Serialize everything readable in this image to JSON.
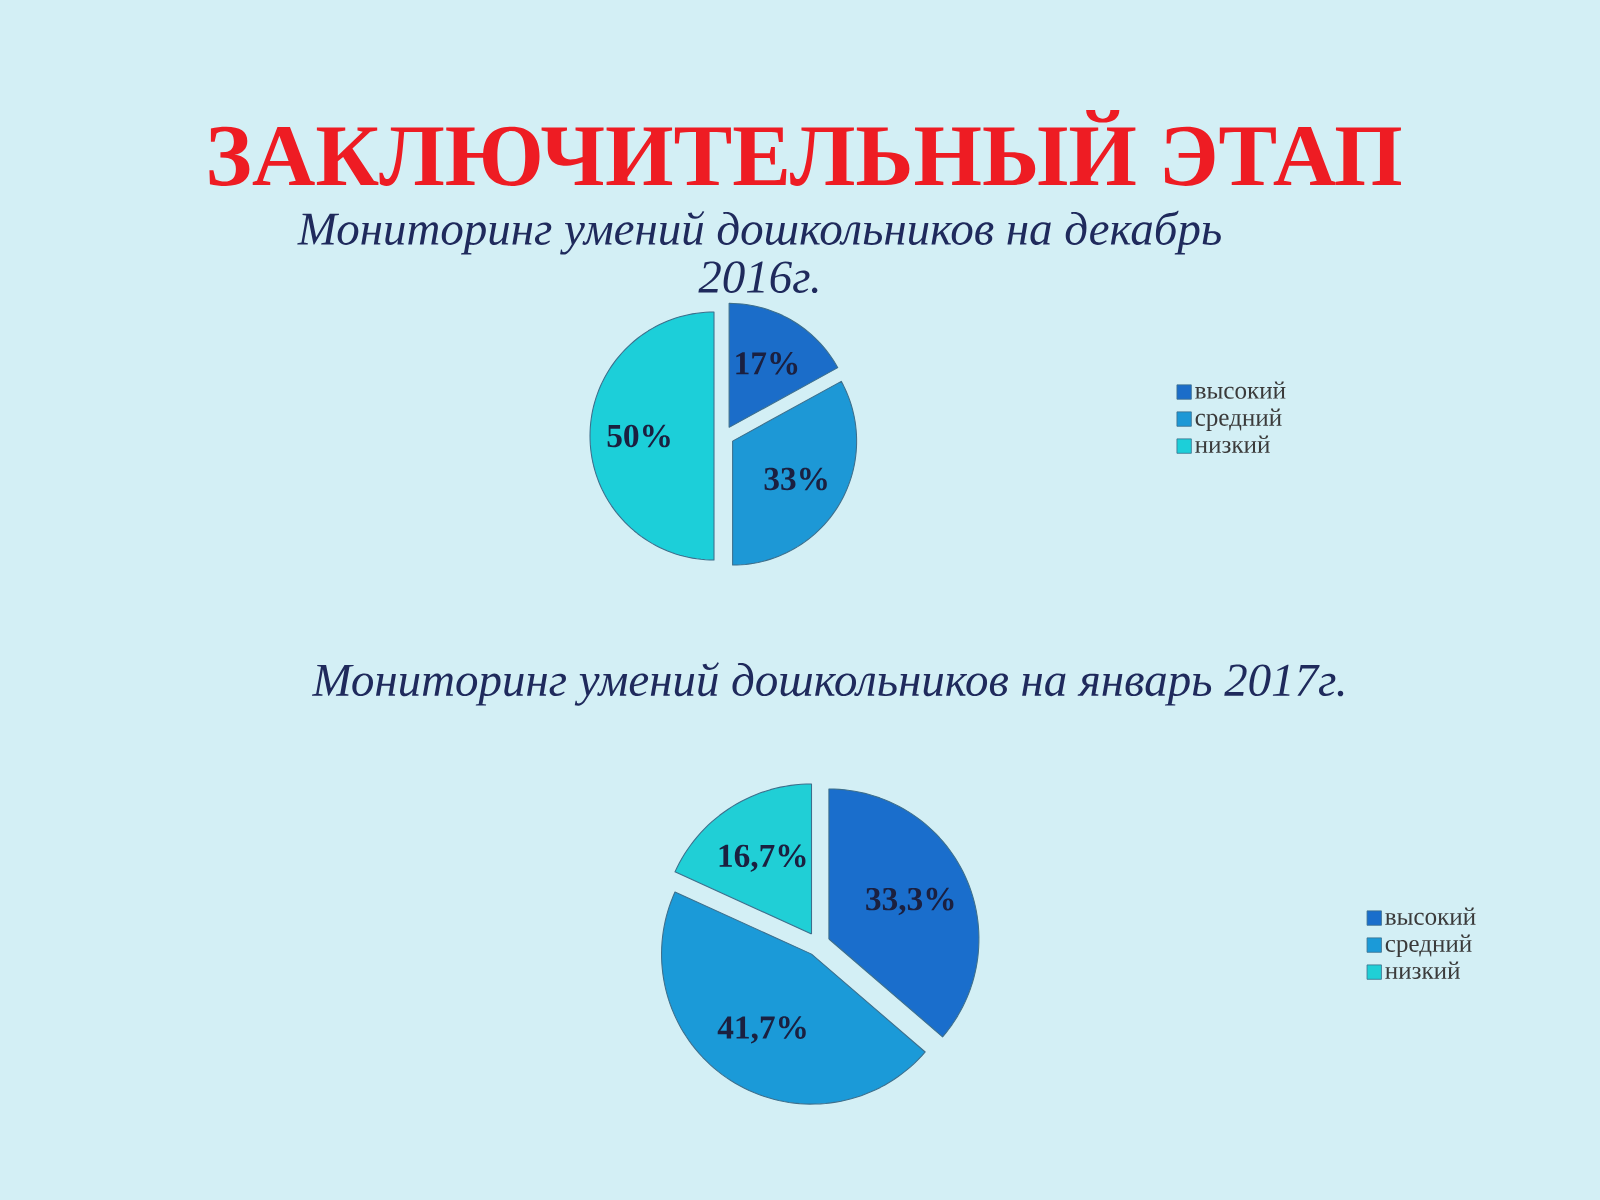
{
  "chart_data": [
    {
      "type": "pie",
      "title": "Мониторинг умений дошкольников на декабрь 2016г.",
      "annotations": [
        "ЗАКЛЮЧИТЕЛЬНЫЙ ЭТАП"
      ],
      "categories": [
        "высокий",
        "средний",
        "низкий"
      ],
      "values": [
        17,
        33,
        50
      ],
      "value_labels": [
        "17%",
        "33%",
        "50%"
      ],
      "colors": [
        "#1b6dc9",
        "#1d98d6",
        "#1ccfd9"
      ],
      "legend": "right"
    },
    {
      "type": "pie",
      "title": "Мониторинг умений дошкольников на январь 2017г.",
      "categories": [
        "высокий",
        "средний",
        "низкий"
      ],
      "values": [
        33.3,
        41.7,
        16.7
      ],
      "value_labels": [
        "33,3%",
        "41,7%",
        "16,7%"
      ],
      "colors": [
        "#1a6ecc",
        "#1b9ad8",
        "#20cfd6"
      ],
      "legend": "right"
    }
  ]
}
